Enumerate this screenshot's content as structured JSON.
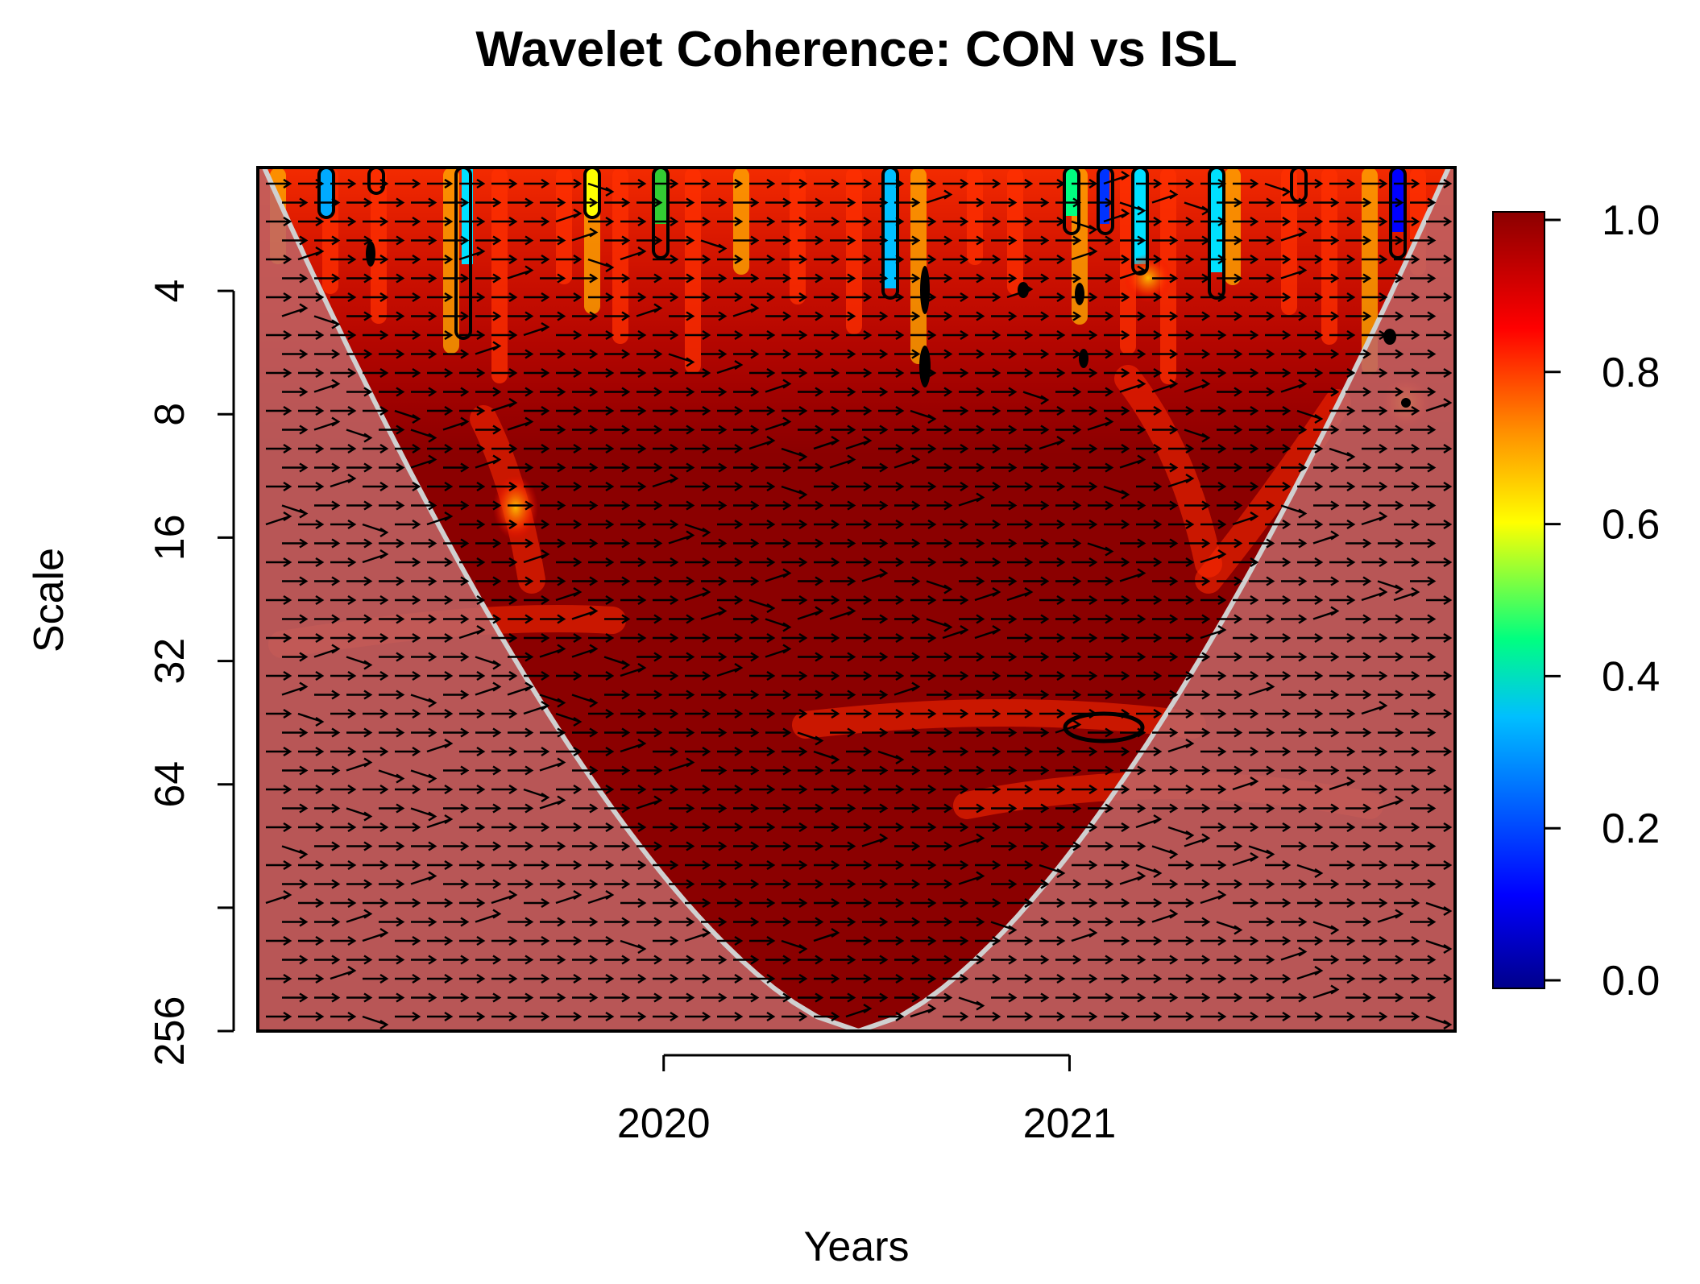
{
  "chart_data": {
    "type": "heatmap",
    "title": "Wavelet Coherence: CON vs ISL",
    "xlabel": "Years",
    "ylabel": "Scale",
    "x_ticks": [
      {
        "label": "2020",
        "value": 2020
      },
      {
        "label": "2021",
        "value": 2021
      }
    ],
    "xlim": [
      2019.0,
      2021.95
    ],
    "y_scale": "log2",
    "ylim": [
      2,
      256
    ],
    "y_ticks": [
      {
        "label": "4",
        "value": 4
      },
      {
        "label": "8",
        "value": 8
      },
      {
        "label": "16",
        "value": 16
      },
      {
        "label": "32",
        "value": 32
      },
      {
        "label": "64",
        "value": 64
      },
      {
        "label": "",
        "value": 128
      },
      {
        "label": "256",
        "value": 256
      }
    ],
    "colorbar": {
      "range": [
        0.0,
        1.0
      ],
      "ticks": [
        "0.0",
        "0.2",
        "0.4",
        "0.6",
        "0.8",
        "1.0"
      ],
      "colors": [
        "#00008b",
        "#0000ff",
        "#00bfff",
        "#00ff80",
        "#ffff00",
        "#ff8c00",
        "#ff0000",
        "#8b0000"
      ]
    },
    "dominant_coherence": 0.95,
    "cone_of_influence": {
      "apex_year": 2020.48,
      "apex_scale": 256
    },
    "arrow_direction": "right (in-phase)"
  },
  "colors": {
    "background": "#ffffff",
    "coherence_high": "#8b0000",
    "coherence_mid": "#ff2a00",
    "coi_shade": "#c06565",
    "coi_line": "#d0d0d0"
  }
}
